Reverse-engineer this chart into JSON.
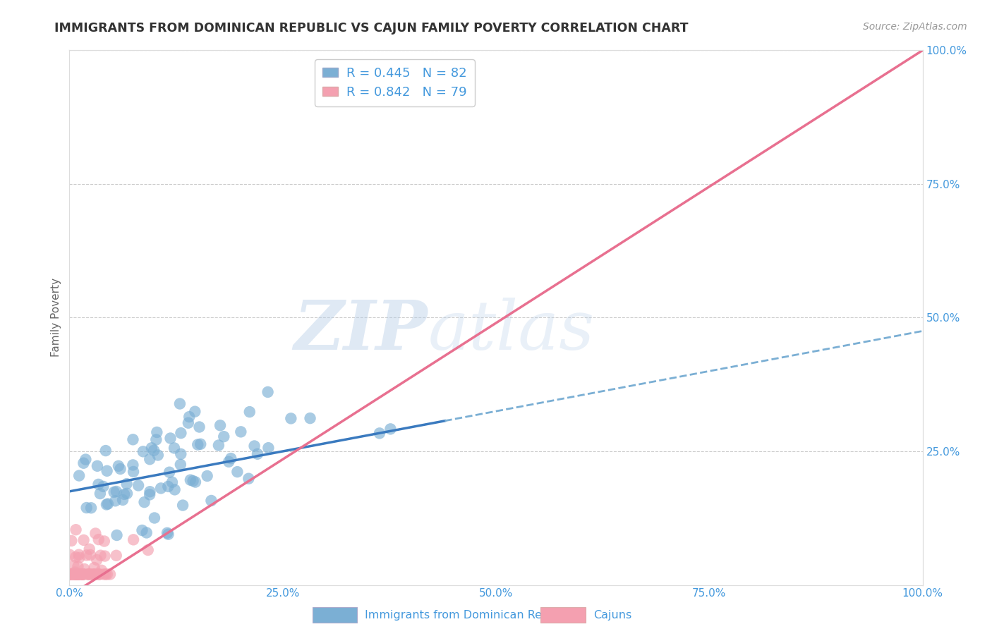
{
  "title": "IMMIGRANTS FROM DOMINICAN REPUBLIC VS CAJUN FAMILY POVERTY CORRELATION CHART",
  "source": "Source: ZipAtlas.com",
  "ylabel": "Family Poverty",
  "watermark_zip": "ZIP",
  "watermark_atlas": "atlas",
  "xlim": [
    0,
    1.0
  ],
  "ylim": [
    0,
    1.0
  ],
  "xticks": [
    0.0,
    0.25,
    0.5,
    0.75,
    1.0
  ],
  "xtick_labels": [
    "0.0%",
    "25.0%",
    "50.0%",
    "75.0%",
    "100.0%"
  ],
  "ytick_labels": [
    "25.0%",
    "50.0%",
    "75.0%",
    "100.0%"
  ],
  "ytick_vals": [
    0.25,
    0.5,
    0.75,
    1.0
  ],
  "series1_color": "#7bafd4",
  "series2_color": "#f4a0b0",
  "line1_solid_color": "#3a7abf",
  "line1_dash_color": "#7bafd4",
  "line2_color": "#e87090",
  "R1": 0.445,
  "N1": 82,
  "R2": 0.842,
  "N2": 79,
  "legend1": "Immigrants from Dominican Republic",
  "legend2": "Cajuns",
  "background_color": "#ffffff",
  "grid_color": "#cccccc",
  "title_color": "#333333",
  "axis_label_color": "#666666",
  "tick_color": "#4499dd",
  "line1_intercept": 0.175,
  "line1_slope": 0.3,
  "line2_intercept": -0.02,
  "line2_slope": 1.02,
  "line1_solid_end": 0.44,
  "seed1": 42,
  "seed2": 7,
  "n1": 82,
  "n2": 79
}
